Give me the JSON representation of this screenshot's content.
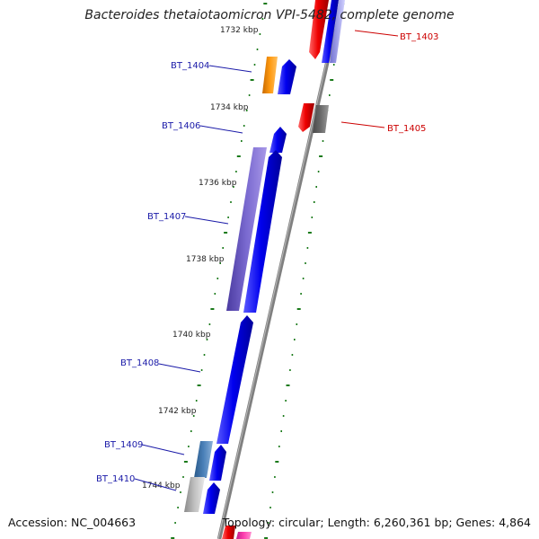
{
  "title": "Bacteroides thetaiotaomicron VPI-5482, complete genome",
  "accession": "Accession: NC_004663",
  "topology": "Topology: circular; Length: 6,260,361 bp; Genes: 4,864",
  "scale_labels": [
    "1732 kbp",
    "1734 kbp",
    "1736 kbp",
    "1738 kbp",
    "1740 kbp",
    "1742 kbp",
    "1744 kbp"
  ],
  "genes": [
    {
      "label": "BT_1403",
      "strand": "forward",
      "color": "#cc0000"
    },
    {
      "label": "BT_1404",
      "strand": "reverse",
      "color": "#1a1aa8"
    },
    {
      "label": "BT_1405",
      "strand": "forward",
      "color": "#cc0000"
    },
    {
      "label": "BT_1406",
      "strand": "reverse",
      "color": "#1a1aa8"
    },
    {
      "label": "BT_1407",
      "strand": "reverse",
      "color": "#1a1aa8"
    },
    {
      "label": "BT_1408",
      "strand": "reverse",
      "color": "#1a1aa8"
    },
    {
      "label": "BT_1409",
      "strand": "reverse",
      "color": "#1a1aa8"
    },
    {
      "label": "BT_1410",
      "strand": "reverse",
      "color": "#1a1aa8"
    }
  ],
  "colors": {
    "backbone": "#808080",
    "cds_blue": "#0000ee",
    "cds_red": "#ee0000",
    "tick_green": "#1a7a1a",
    "label_blue": "#1a1aa8",
    "label_red": "#cc0000"
  }
}
